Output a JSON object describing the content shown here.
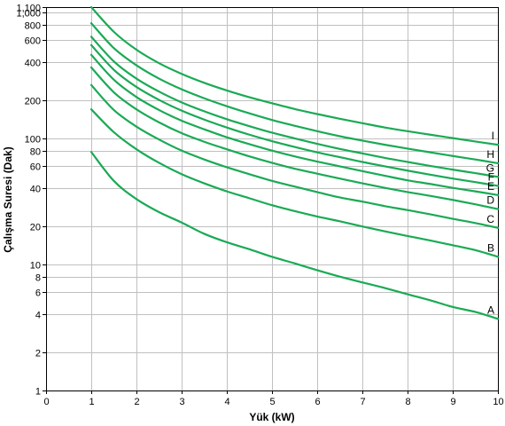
{
  "chart_data": {
    "type": "line",
    "xlabel": "Yük (kW)",
    "ylabel": "Çalışma Suresi (Dak)",
    "xlim": [
      0,
      10
    ],
    "ylim": [
      1,
      1100
    ],
    "y_scale": "log",
    "grid": true,
    "line_color": "#1aaa55",
    "x_ticks": [
      "0",
      "1",
      "2",
      "3",
      "4",
      "5",
      "6",
      "7",
      "8",
      "9",
      "10"
    ],
    "y_ticks": [
      {
        "value": 1,
        "label": "1"
      },
      {
        "value": 2,
        "label": "2"
      },
      {
        "value": 4,
        "label": "4"
      },
      {
        "value": 6,
        "label": "6"
      },
      {
        "value": 8,
        "label": "8"
      },
      {
        "value": 10,
        "label": "10"
      },
      {
        "value": 20,
        "label": "20"
      },
      {
        "value": 40,
        "label": "40"
      },
      {
        "value": 60,
        "label": "60"
      },
      {
        "value": 80,
        "label": "80"
      },
      {
        "value": 100,
        "label": "100"
      },
      {
        "value": 200,
        "label": "200"
      },
      {
        "value": 400,
        "label": "400"
      },
      {
        "value": 600,
        "label": "600"
      },
      {
        "value": 800,
        "label": "800"
      },
      {
        "value": 1000,
        "label": "1,000"
      },
      {
        "value": 1100,
        "label": "1,100"
      }
    ],
    "x": [
      1,
      1.5,
      2,
      2.5,
      3,
      3.5,
      4,
      4.5,
      5,
      5.5,
      6,
      6.5,
      7,
      7.5,
      8,
      8.5,
      9,
      9.5,
      10
    ],
    "series": [
      {
        "name": "A",
        "values": [
          78,
          46,
          33,
          26,
          21.5,
          17.5,
          15,
          13.2,
          11.5,
          10.2,
          9,
          8,
          7.2,
          6.5,
          5.8,
          5.2,
          4.6,
          4.2,
          3.7
        ]
      },
      {
        "name": "B",
        "values": [
          170,
          112,
          82,
          64,
          52,
          44,
          38,
          33.5,
          29.5,
          26.5,
          24,
          22,
          20,
          18.3,
          16.8,
          15.5,
          14.2,
          13,
          11.5
        ]
      },
      {
        "name": "C",
        "values": [
          265,
          168,
          124,
          98,
          80,
          68,
          59,
          52,
          46,
          41.5,
          37.5,
          34,
          31.5,
          29,
          27,
          25,
          23,
          21.3,
          19.5
        ]
      },
      {
        "name": "D",
        "values": [
          365,
          232,
          170,
          134,
          110,
          94,
          82,
          72,
          64,
          57.5,
          52.5,
          48,
          44,
          40.5,
          37.5,
          35,
          32.5,
          30,
          27.5
        ]
      },
      {
        "name": "E",
        "values": [
          460,
          292,
          213,
          168,
          138,
          118,
          102,
          90,
          80,
          72,
          65.5,
          60,
          55,
          50.5,
          46.5,
          43.5,
          40.5,
          38,
          35.5
        ]
      },
      {
        "name": "F",
        "values": [
          550,
          350,
          256,
          202,
          166,
          141,
          122,
          107,
          95,
          85.5,
          77.5,
          71,
          65,
          60,
          55.5,
          51.5,
          48,
          45,
          42
        ]
      },
      {
        "name": "G",
        "values": [
          640,
          408,
          298,
          235,
          193,
          164,
          142,
          125,
          111,
          100,
          90.5,
          82.5,
          76,
          70,
          65,
          60.5,
          56.5,
          53,
          49.5
        ]
      },
      {
        "name": "H",
        "values": [
          820,
          520,
          380,
          298,
          245,
          208,
          180,
          158,
          140,
          126,
          114,
          104,
          96,
          89,
          83,
          77.5,
          72.5,
          68,
          63.5
        ]
      },
      {
        "name": "I",
        "values": [
          1100,
          700,
          505,
          395,
          325,
          276,
          240,
          212,
          190,
          171,
          156,
          143,
          132,
          122,
          114,
          107,
          100.5,
          94.5,
          89
        ]
      }
    ]
  }
}
